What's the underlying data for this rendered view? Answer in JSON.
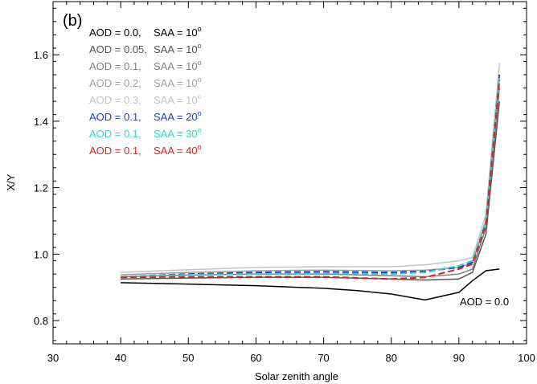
{
  "chart_data": {
    "type": "line",
    "panel_label": "(b)",
    "xlabel": "Solar zenith angle",
    "ylabel": "X/Y",
    "xlim": [
      30,
      100
    ],
    "ylim": [
      0.73,
      1.76
    ],
    "xticks": [
      30,
      40,
      50,
      60,
      70,
      80,
      90,
      100
    ],
    "yticks": [
      0.8,
      1.0,
      1.2,
      1.4,
      1.6
    ],
    "ytick_labels": [
      "0.8",
      "1.0",
      "1.2",
      "1.4",
      "1.6"
    ],
    "grid": false,
    "legend_position": "top-left",
    "annotation": "AOD = 0.0",
    "series": [
      {
        "name": "AOD = 0.0,  SAA = 10°",
        "aod": "AOD = 0.0,",
        "saa": "SAA = 10",
        "color": "#000000",
        "dash": false,
        "x": [
          40,
          50,
          60,
          70,
          75,
          80,
          85,
          90,
          92,
          94,
          96
        ],
        "y": [
          0.914,
          0.91,
          0.905,
          0.897,
          0.89,
          0.88,
          0.862,
          0.885,
          0.92,
          0.95,
          0.955
        ]
      },
      {
        "name": "AOD = 0.05, SAA = 10°",
        "aod": "AOD = 0.05,",
        "saa": "SAA = 10",
        "color": "#555555",
        "dash": false,
        "x": [
          40,
          50,
          60,
          70,
          80,
          85,
          90,
          92,
          94,
          96
        ],
        "y": [
          0.925,
          0.928,
          0.93,
          0.93,
          0.925,
          0.922,
          0.925,
          0.945,
          1.06,
          1.46
        ]
      },
      {
        "name": "AOD = 0.1,  SAA = 10°",
        "aod": "AOD = 0.1,",
        "saa": "SAA = 10",
        "color": "#808080",
        "dash": false,
        "x": [
          40,
          50,
          60,
          70,
          80,
          85,
          90,
          92,
          94,
          96
        ],
        "y": [
          0.932,
          0.937,
          0.94,
          0.94,
          0.935,
          0.932,
          0.94,
          0.955,
          1.08,
          1.5
        ]
      },
      {
        "name": "AOD = 0.2,  SAA = 10°",
        "aod": "AOD = 0.2,",
        "saa": "SAA = 10",
        "color": "#a0a0a0",
        "dash": false,
        "x": [
          40,
          50,
          60,
          70,
          80,
          85,
          90,
          92,
          94,
          96
        ],
        "y": [
          0.938,
          0.945,
          0.95,
          0.952,
          0.95,
          0.952,
          0.96,
          0.975,
          1.1,
          1.54
        ]
      },
      {
        "name": "AOD = 0.3,  SAA = 10°",
        "aod": "AOD = 0.3,",
        "saa": "SAA = 10",
        "color": "#c4c4c4",
        "dash": false,
        "x": [
          40,
          50,
          60,
          70,
          80,
          85,
          90,
          92,
          94,
          96
        ],
        "y": [
          0.945,
          0.953,
          0.96,
          0.962,
          0.962,
          0.968,
          0.98,
          0.99,
          1.12,
          1.575
        ]
      },
      {
        "name": "AOD = 0.1,  SAA = 20°",
        "aod": "AOD = 0.1,",
        "saa": "SAA = 20",
        "color": "#1c3fd6",
        "dash": true,
        "x": [
          40,
          50,
          60,
          70,
          80,
          85,
          90,
          92,
          94,
          96
        ],
        "y": [
          0.932,
          0.94,
          0.945,
          0.947,
          0.945,
          0.948,
          0.96,
          0.975,
          1.1,
          1.54
        ]
      },
      {
        "name": "AOD = 0.1,  SAA = 30°",
        "aod": "AOD = 0.1,",
        "saa": "SAA = 30",
        "color": "#2fd6c8",
        "dash": true,
        "x": [
          40,
          50,
          60,
          70,
          80,
          85,
          90,
          92,
          94,
          96
        ],
        "y": [
          0.932,
          0.938,
          0.94,
          0.942,
          0.94,
          0.945,
          0.965,
          0.98,
          1.1,
          1.535
        ]
      },
      {
        "name": "AOD = 0.1,  SAA = 40°",
        "aod": "AOD = 0.1,",
        "saa": "SAA = 40",
        "color": "#e0201c",
        "dash": true,
        "x": [
          40,
          50,
          60,
          70,
          80,
          85,
          90,
          92,
          94,
          96
        ],
        "y": [
          0.93,
          0.932,
          0.932,
          0.932,
          0.925,
          0.93,
          0.955,
          0.97,
          1.09,
          1.525
        ]
      }
    ]
  }
}
